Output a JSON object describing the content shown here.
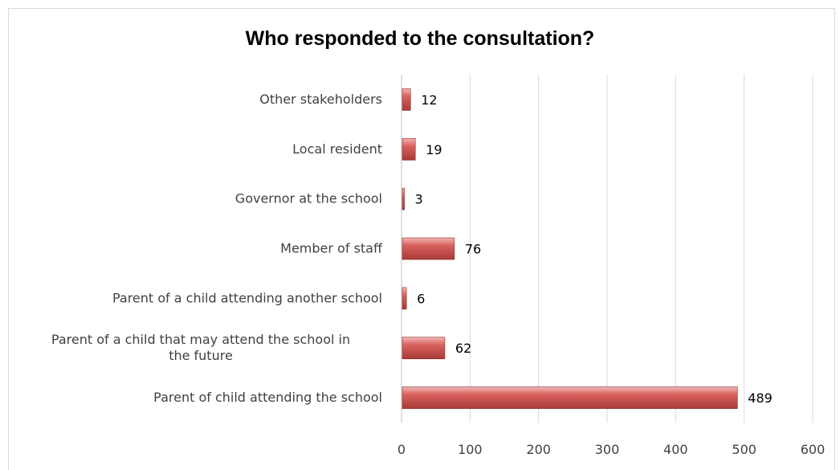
{
  "chart_data": {
    "type": "bar",
    "orientation": "horizontal",
    "title": "Who responded to the consultation?",
    "categories": [
      "Other stakeholders",
      "Local resident",
      "Governor at the school",
      "Member of staff",
      "Parent of a child attending another school",
      "Parent of a child that may attend the school in the future",
      "Parent of child attending the school"
    ],
    "category_lines": [
      [
        "Other stakeholders"
      ],
      [
        "Local resident"
      ],
      [
        "Governor at the school"
      ],
      [
        "Member of staff"
      ],
      [
        "Parent of a child attending another school"
      ],
      [
        "Parent of a child that may attend the school in",
        "the future"
      ],
      [
        "Parent of child attending the school"
      ]
    ],
    "values": [
      12,
      19,
      3,
      76,
      6,
      62,
      489
    ],
    "xlim": [
      0,
      600
    ],
    "xticks": [
      "0",
      "100",
      "200",
      "300",
      "400",
      "500",
      "600"
    ],
    "grid": true,
    "legend": "none",
    "bar_color": "#c0504d"
  }
}
